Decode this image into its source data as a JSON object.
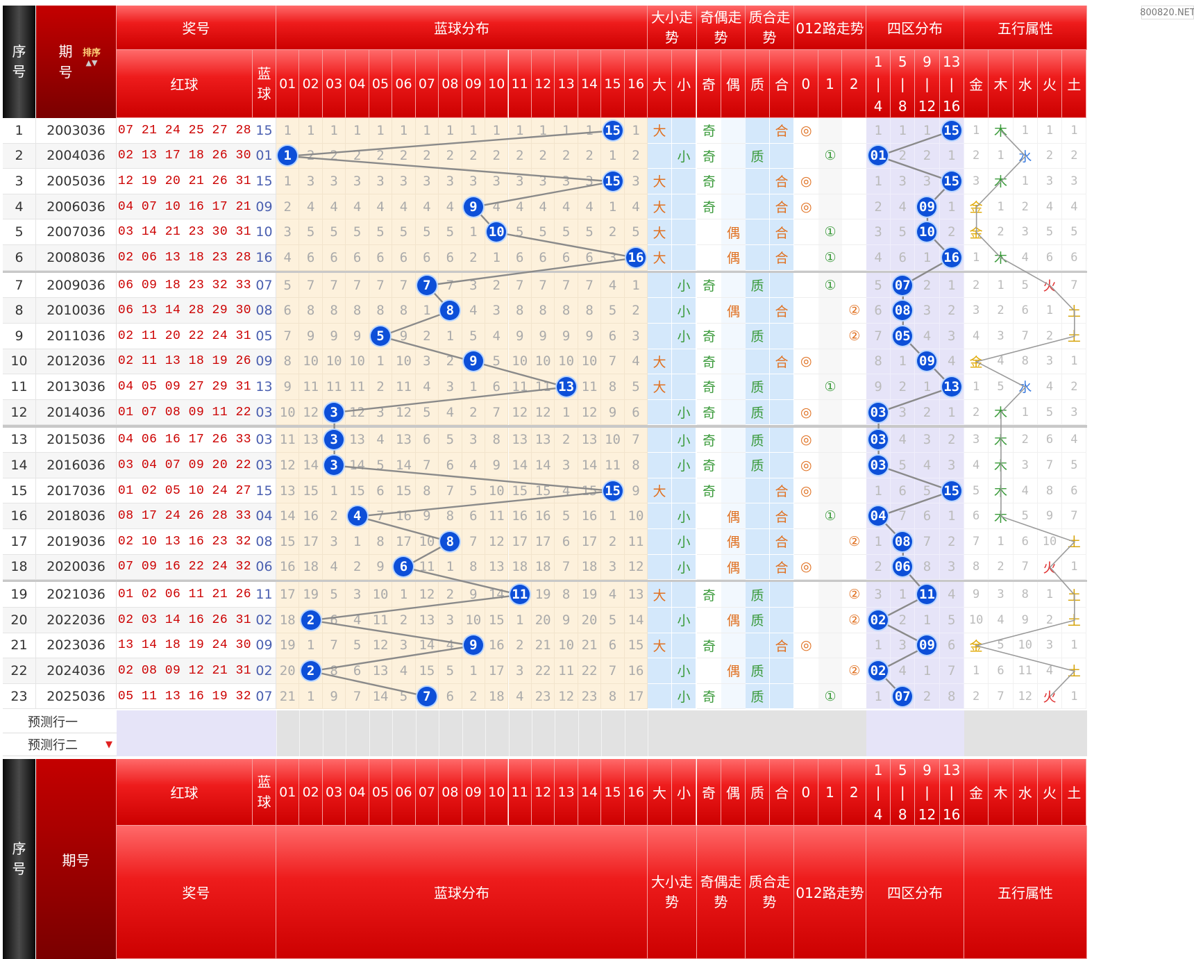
{
  "header": {
    "seq": "序号",
    "period": "期号",
    "sort": "排序",
    "award": "奖号",
    "red": "红球",
    "blue": "蓝球",
    "blue_dist": "蓝球分布",
    "big_small": "大小走势",
    "odd_even": "奇偶走势",
    "prime_comp": "质合走势",
    "road012": "012路走势",
    "zone4": "四区分布",
    "wuxing": "五行属性",
    "blue_cols": [
      "01",
      "02",
      "03",
      "04",
      "05",
      "06",
      "07",
      "08",
      "09",
      "10",
      "11",
      "12",
      "13",
      "14",
      "15",
      "16"
    ],
    "bs_cols": [
      "大",
      "小"
    ],
    "oe_cols": [
      "奇",
      "偶"
    ],
    "pc_cols": [
      "质",
      "合"
    ],
    "r_cols": [
      "0",
      "1",
      "2"
    ],
    "zone_cols": [
      [
        "1",
        "|",
        "4"
      ],
      [
        "5",
        "|",
        "8"
      ],
      [
        "9",
        "|",
        "12"
      ],
      [
        "13",
        "|",
        "16"
      ]
    ],
    "wx_cols": [
      "金",
      "木",
      "水",
      "火",
      "土"
    ]
  },
  "predict": [
    "预测行一",
    "预测行二"
  ],
  "watermark": "800820.NET",
  "colors": {
    "ball": "#0d4fd8",
    "red_text": "#cc0000",
    "orange": "#e07020",
    "green": "#3a9a3a",
    "zone_bg": "#e6e4f8",
    "blue_bg": "#d4e8fb",
    "cream_bg": "#fdf1dc"
  },
  "rows": [
    {
      "seq": "1",
      "period": "2003036",
      "red": "07 21 24 25 27 28",
      "blue": "15",
      "miss": [
        "1",
        "1",
        "1",
        "1",
        "1",
        "1",
        "1",
        "1",
        "1",
        "1",
        "1",
        "1",
        "1",
        "1",
        "",
        "1"
      ],
      "bs": "大",
      "oe": "奇",
      "pc": "合",
      "r012": "◎",
      "rpos": 0,
      "zone": [
        "1",
        "1",
        "1",
        "15"
      ],
      "zpos": 3,
      "wx": [
        "1",
        "木",
        "1",
        "1",
        "1"
      ],
      "wxpos": 1
    },
    {
      "seq": "2",
      "period": "2004036",
      "red": "02 13 17 18 26 30",
      "blue": "01",
      "miss": [
        "",
        "2",
        "2",
        "2",
        "2",
        "2",
        "2",
        "2",
        "2",
        "2",
        "2",
        "2",
        "2",
        "2",
        "1",
        "2"
      ],
      "bs": "小",
      "oe": "奇",
      "pc": "质",
      "r012": "①",
      "rpos": 1,
      "zone": [
        "01",
        "2",
        "2",
        "1"
      ],
      "zpos": 0,
      "wx": [
        "2",
        "1",
        "水",
        "2",
        "2"
      ],
      "wxpos": 2
    },
    {
      "seq": "3",
      "period": "2005036",
      "red": "12 19 20 21 26 31",
      "blue": "15",
      "miss": [
        "1",
        "3",
        "3",
        "3",
        "3",
        "3",
        "3",
        "3",
        "3",
        "3",
        "3",
        "3",
        "3",
        "3",
        "",
        "3"
      ],
      "bs": "大",
      "oe": "奇",
      "pc": "合",
      "r012": "◎",
      "rpos": 0,
      "zone": [
        "1",
        "3",
        "3",
        "15"
      ],
      "zpos": 3,
      "wx": [
        "3",
        "木",
        "1",
        "3",
        "3"
      ],
      "wxpos": 1
    },
    {
      "seq": "4",
      "period": "2006036",
      "red": "04 07 10 16 17 21",
      "blue": "09",
      "miss": [
        "2",
        "4",
        "4",
        "4",
        "4",
        "4",
        "4",
        "4",
        "",
        "4",
        "4",
        "4",
        "4",
        "4",
        "1",
        "4"
      ],
      "bs": "大",
      "oe": "奇",
      "pc": "合",
      "r012": "◎",
      "rpos": 0,
      "zone": [
        "2",
        "4",
        "09",
        "1"
      ],
      "zpos": 2,
      "wx": [
        "金",
        "1",
        "2",
        "4",
        "4"
      ],
      "wxpos": 0
    },
    {
      "seq": "5",
      "period": "2007036",
      "red": "03 14 21 23 30 31",
      "blue": "10",
      "miss": [
        "3",
        "5",
        "5",
        "5",
        "5",
        "5",
        "5",
        "5",
        "1",
        "",
        "5",
        "5",
        "5",
        "5",
        "2",
        "5"
      ],
      "bs": "大",
      "oe": "偶",
      "pc": "合",
      "r012": "①",
      "rpos": 1,
      "zone": [
        "3",
        "5",
        "10",
        "2"
      ],
      "zpos": 2,
      "wx": [
        "金",
        "2",
        "3",
        "5",
        "5"
      ],
      "wxpos": 0
    },
    {
      "seq": "6",
      "period": "2008036",
      "red": "02 06 13 18 23 28",
      "blue": "16",
      "miss": [
        "4",
        "6",
        "6",
        "6",
        "6",
        "6",
        "6",
        "6",
        "2",
        "1",
        "6",
        "6",
        "6",
        "6",
        "3",
        ""
      ],
      "bs": "大",
      "oe": "偶",
      "pc": "合",
      "r012": "①",
      "rpos": 1,
      "zone": [
        "4",
        "6",
        "1",
        "16"
      ],
      "zpos": 3,
      "wx": [
        "1",
        "木",
        "4",
        "6",
        "6"
      ],
      "wxpos": 1
    },
    {
      "seq": "7",
      "period": "2009036",
      "red": "06 09 18 23 32 33",
      "blue": "07",
      "miss": [
        "5",
        "7",
        "7",
        "7",
        "7",
        "7",
        "",
        "7",
        "3",
        "2",
        "7",
        "7",
        "7",
        "7",
        "4",
        "1"
      ],
      "bs": "小",
      "oe": "奇",
      "pc": "质",
      "r012": "①",
      "rpos": 1,
      "zone": [
        "5",
        "07",
        "2",
        "1"
      ],
      "zpos": 1,
      "wx": [
        "2",
        "1",
        "5",
        "火",
        "7"
      ],
      "wxpos": 3
    },
    {
      "seq": "8",
      "period": "2010036",
      "red": "06 13 14 28 29 30",
      "blue": "08",
      "miss": [
        "6",
        "8",
        "8",
        "8",
        "8",
        "8",
        "1",
        "",
        "4",
        "3",
        "8",
        "8",
        "8",
        "8",
        "5",
        "2"
      ],
      "bs": "小",
      "oe": "偶",
      "pc": "合",
      "r012": "②",
      "rpos": 2,
      "zone": [
        "6",
        "08",
        "3",
        "2"
      ],
      "zpos": 1,
      "wx": [
        "3",
        "2",
        "6",
        "1",
        "土"
      ],
      "wxpos": 4
    },
    {
      "seq": "9",
      "period": "2011036",
      "red": "02 11 20 22 24 31",
      "blue": "05",
      "miss": [
        "7",
        "9",
        "9",
        "9",
        "",
        "9",
        "2",
        "1",
        "5",
        "4",
        "9",
        "9",
        "9",
        "9",
        "6",
        "3"
      ],
      "bs": "小",
      "oe": "奇",
      "pc": "质",
      "r012": "②",
      "rpos": 2,
      "zone": [
        "7",
        "05",
        "4",
        "3"
      ],
      "zpos": 1,
      "wx": [
        "4",
        "3",
        "7",
        "2",
        "土"
      ],
      "wxpos": 4
    },
    {
      "seq": "10",
      "period": "2012036",
      "red": "02 11 13 18 19 26",
      "blue": "09",
      "miss": [
        "8",
        "10",
        "10",
        "10",
        "1",
        "10",
        "3",
        "2",
        "",
        "5",
        "10",
        "10",
        "10",
        "10",
        "7",
        "4"
      ],
      "bs": "大",
      "oe": "奇",
      "pc": "合",
      "r012": "◎",
      "rpos": 0,
      "zone": [
        "8",
        "1",
        "09",
        "4"
      ],
      "zpos": 2,
      "wx": [
        "金",
        "4",
        "8",
        "3",
        "1"
      ],
      "wxpos": 0
    },
    {
      "seq": "11",
      "period": "2013036",
      "red": "04 05 09 27 29 31",
      "blue": "13",
      "miss": [
        "9",
        "11",
        "11",
        "11",
        "2",
        "11",
        "4",
        "3",
        "1",
        "6",
        "11",
        "11",
        "",
        "11",
        "8",
        "5"
      ],
      "bs": "大",
      "oe": "奇",
      "pc": "质",
      "r012": "①",
      "rpos": 1,
      "zone": [
        "9",
        "2",
        "1",
        "13"
      ],
      "zpos": 3,
      "wx": [
        "1",
        "5",
        "水",
        "4",
        "2"
      ],
      "wxpos": 2
    },
    {
      "seq": "12",
      "period": "2014036",
      "red": "01 07 08 09 11 22",
      "blue": "03",
      "miss": [
        "10",
        "12",
        "",
        "12",
        "3",
        "12",
        "5",
        "4",
        "2",
        "7",
        "12",
        "12",
        "1",
        "12",
        "9",
        "6"
      ],
      "bs": "小",
      "oe": "奇",
      "pc": "质",
      "r012": "◎",
      "rpos": 0,
      "zone": [
        "03",
        "3",
        "2",
        "1"
      ],
      "zpos": 0,
      "wx": [
        "2",
        "木",
        "1",
        "5",
        "3"
      ],
      "wxpos": 1
    },
    {
      "seq": "13",
      "period": "2015036",
      "red": "04 06 16 17 26 33",
      "blue": "03",
      "miss": [
        "11",
        "13",
        "",
        "13",
        "4",
        "13",
        "6",
        "5",
        "3",
        "8",
        "13",
        "13",
        "2",
        "13",
        "10",
        "7"
      ],
      "bs": "小",
      "oe": "奇",
      "pc": "质",
      "r012": "◎",
      "rpos": 0,
      "zone": [
        "03",
        "4",
        "3",
        "2"
      ],
      "zpos": 0,
      "wx": [
        "3",
        "木",
        "2",
        "6",
        "4"
      ],
      "wxpos": 1
    },
    {
      "seq": "14",
      "period": "2016036",
      "red": "03 04 07 09 20 22",
      "blue": "03",
      "miss": [
        "12",
        "14",
        "",
        "14",
        "5",
        "14",
        "7",
        "6",
        "4",
        "9",
        "14",
        "14",
        "3",
        "14",
        "11",
        "8"
      ],
      "bs": "小",
      "oe": "奇",
      "pc": "质",
      "r012": "◎",
      "rpos": 0,
      "zone": [
        "03",
        "5",
        "4",
        "3"
      ],
      "zpos": 0,
      "wx": [
        "4",
        "木",
        "3",
        "7",
        "5"
      ],
      "wxpos": 1
    },
    {
      "seq": "15",
      "period": "2017036",
      "red": "01 02 05 10 24 27",
      "blue": "15",
      "miss": [
        "13",
        "15",
        "1",
        "15",
        "6",
        "15",
        "8",
        "7",
        "5",
        "10",
        "15",
        "15",
        "4",
        "15",
        "",
        "9"
      ],
      "bs": "大",
      "oe": "奇",
      "pc": "合",
      "r012": "◎",
      "rpos": 0,
      "zone": [
        "1",
        "6",
        "5",
        "15"
      ],
      "zpos": 3,
      "wx": [
        "5",
        "木",
        "4",
        "8",
        "6"
      ],
      "wxpos": 1
    },
    {
      "seq": "16",
      "period": "2018036",
      "red": "08 17 24 26 28 33",
      "blue": "04",
      "miss": [
        "14",
        "16",
        "2",
        "",
        "7",
        "16",
        "9",
        "8",
        "6",
        "11",
        "16",
        "16",
        "5",
        "16",
        "1",
        "10"
      ],
      "bs": "小",
      "oe": "偶",
      "pc": "合",
      "r012": "①",
      "rpos": 1,
      "zone": [
        "04",
        "7",
        "6",
        "1"
      ],
      "zpos": 0,
      "wx": [
        "6",
        "木",
        "5",
        "9",
        "7"
      ],
      "wxpos": 1
    },
    {
      "seq": "17",
      "period": "2019036",
      "red": "02 10 13 16 23 32",
      "blue": "08",
      "miss": [
        "15",
        "17",
        "3",
        "1",
        "8",
        "17",
        "10",
        "",
        "7",
        "12",
        "17",
        "17",
        "6",
        "17",
        "2",
        "11"
      ],
      "bs": "小",
      "oe": "偶",
      "pc": "合",
      "r012": "②",
      "rpos": 2,
      "zone": [
        "1",
        "08",
        "7",
        "2"
      ],
      "zpos": 1,
      "wx": [
        "7",
        "1",
        "6",
        "10",
        "土"
      ],
      "wxpos": 4
    },
    {
      "seq": "18",
      "period": "2020036",
      "red": "07 09 16 22 24 32",
      "blue": "06",
      "miss": [
        "16",
        "18",
        "4",
        "2",
        "9",
        "",
        "11",
        "1",
        "8",
        "13",
        "18",
        "18",
        "7",
        "18",
        "3",
        "12"
      ],
      "bs": "小",
      "oe": "偶",
      "pc": "合",
      "r012": "◎",
      "rpos": 0,
      "zone": [
        "2",
        "06",
        "8",
        "3"
      ],
      "zpos": 1,
      "wx": [
        "8",
        "2",
        "7",
        "火",
        "1"
      ],
      "wxpos": 3
    },
    {
      "seq": "19",
      "period": "2021036",
      "red": "01 02 06 11 21 26",
      "blue": "11",
      "miss": [
        "17",
        "19",
        "5",
        "3",
        "10",
        "1",
        "12",
        "2",
        "9",
        "14",
        "",
        "19",
        "8",
        "19",
        "4",
        "13"
      ],
      "bs": "大",
      "oe": "奇",
      "pc": "质",
      "r012": "②",
      "rpos": 2,
      "zone": [
        "3",
        "1",
        "11",
        "4"
      ],
      "zpos": 2,
      "wx": [
        "9",
        "3",
        "8",
        "1",
        "土"
      ],
      "wxpos": 4
    },
    {
      "seq": "20",
      "period": "2022036",
      "red": "02 03 14 16 26 31",
      "blue": "02",
      "miss": [
        "18",
        "",
        "6",
        "4",
        "11",
        "2",
        "13",
        "3",
        "10",
        "15",
        "1",
        "20",
        "9",
        "20",
        "5",
        "14"
      ],
      "bs": "小",
      "oe": "偶",
      "pc": "质",
      "r012": "②",
      "rpos": 2,
      "zone": [
        "02",
        "2",
        "1",
        "5"
      ],
      "zpos": 0,
      "wx": [
        "10",
        "4",
        "9",
        "2",
        "土"
      ],
      "wxpos": 4
    },
    {
      "seq": "21",
      "period": "2023036",
      "red": "13 14 18 19 24 30",
      "blue": "09",
      "miss": [
        "19",
        "1",
        "7",
        "5",
        "12",
        "3",
        "14",
        "4",
        "",
        "16",
        "2",
        "21",
        "10",
        "21",
        "6",
        "15"
      ],
      "bs": "大",
      "oe": "奇",
      "pc": "合",
      "r012": "◎",
      "rpos": 0,
      "zone": [
        "1",
        "3",
        "09",
        "6"
      ],
      "zpos": 2,
      "wx": [
        "金",
        "5",
        "10",
        "3",
        "1"
      ],
      "wxpos": 0
    },
    {
      "seq": "22",
      "period": "2024036",
      "red": "02 08 09 12 21 31",
      "blue": "02",
      "miss": [
        "20",
        "",
        "8",
        "6",
        "13",
        "4",
        "15",
        "5",
        "1",
        "17",
        "3",
        "22",
        "11",
        "22",
        "7",
        "16"
      ],
      "bs": "小",
      "oe": "偶",
      "pc": "质",
      "r012": "②",
      "rpos": 2,
      "zone": [
        "02",
        "4",
        "1",
        "7"
      ],
      "zpos": 0,
      "wx": [
        "1",
        "6",
        "11",
        "4",
        "土"
      ],
      "wxpos": 4
    },
    {
      "seq": "23",
      "period": "2025036",
      "red": "05 11 13 16 19 32",
      "blue": "07",
      "miss": [
        "21",
        "1",
        "9",
        "7",
        "14",
        "5",
        "",
        "6",
        "2",
        "18",
        "4",
        "23",
        "12",
        "23",
        "8",
        "17"
      ],
      "bs": "小",
      "oe": "奇",
      "pc": "质",
      "r012": "①",
      "rpos": 1,
      "zone": [
        "1",
        "07",
        "2",
        "8"
      ],
      "zpos": 1,
      "wx": [
        "2",
        "7",
        "12",
        "火",
        "1"
      ],
      "wxpos": 3
    }
  ]
}
